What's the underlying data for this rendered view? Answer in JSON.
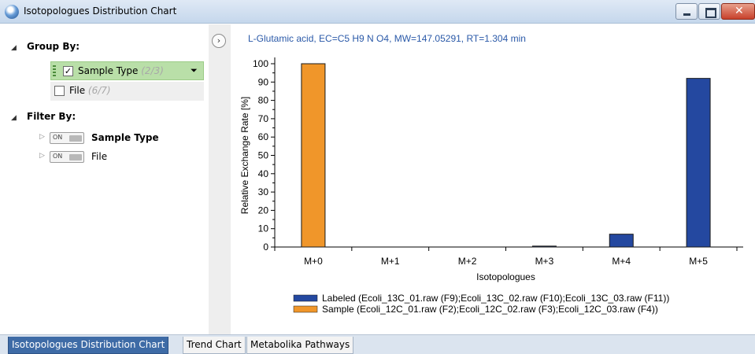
{
  "window": {
    "title": "Isotopologues Distribution Chart",
    "close_glyph": "✕"
  },
  "left_panel": {
    "group_by": {
      "heading": "Group By:",
      "items": [
        {
          "label": "Sample Type",
          "count": "(2/3)",
          "checked": true
        },
        {
          "label": "File",
          "count": "(6/7)",
          "checked": false
        }
      ]
    },
    "filter_by": {
      "heading": "Filter By:",
      "items": [
        {
          "toggle": "ON",
          "label": "Sample Type"
        },
        {
          "toggle": "ON",
          "label": "File"
        }
      ]
    }
  },
  "chart_data": {
    "type": "bar",
    "title": "L-Glutamic acid, EC=C5 H9 N O4, MW=147.05291, RT=1.304 min",
    "xlabel": "Isotopologues",
    "ylabel": "Relative Exchange Rate [%]",
    "ylim": [
      0,
      100
    ],
    "yticks": [
      0,
      10,
      20,
      30,
      40,
      50,
      60,
      70,
      80,
      90,
      100
    ],
    "categories": [
      "M+0",
      "M+1",
      "M+2",
      "M+3",
      "M+4",
      "M+5"
    ],
    "series": [
      {
        "name": "Labeled (Ecoli_13C_01.raw (F9);Ecoli_13C_02.raw (F10);Ecoli_13C_03.raw (F11))",
        "color": "#2448a0",
        "values": [
          0,
          0,
          0,
          0.5,
          7,
          92
        ]
      },
      {
        "name": "Sample (Ecoli_12C_01.raw (F2);Ecoli_12C_02.raw (F3);Ecoli_12C_03.raw (F4))",
        "color": "#f0962a",
        "values": [
          100,
          0,
          0,
          0,
          0,
          0
        ]
      }
    ],
    "legend_position": "bottom",
    "title_color": "#2a59a8"
  },
  "tabs": [
    {
      "label": "Isotopologues Distribution Chart",
      "active": true
    },
    {
      "label": "Trend Chart",
      "active": false
    },
    {
      "label": "Metabolika Pathways",
      "active": false
    }
  ],
  "icons": {
    "collapse_panel": "chevron-right-icon",
    "app": "app-icon",
    "sort": "sort-icon"
  }
}
